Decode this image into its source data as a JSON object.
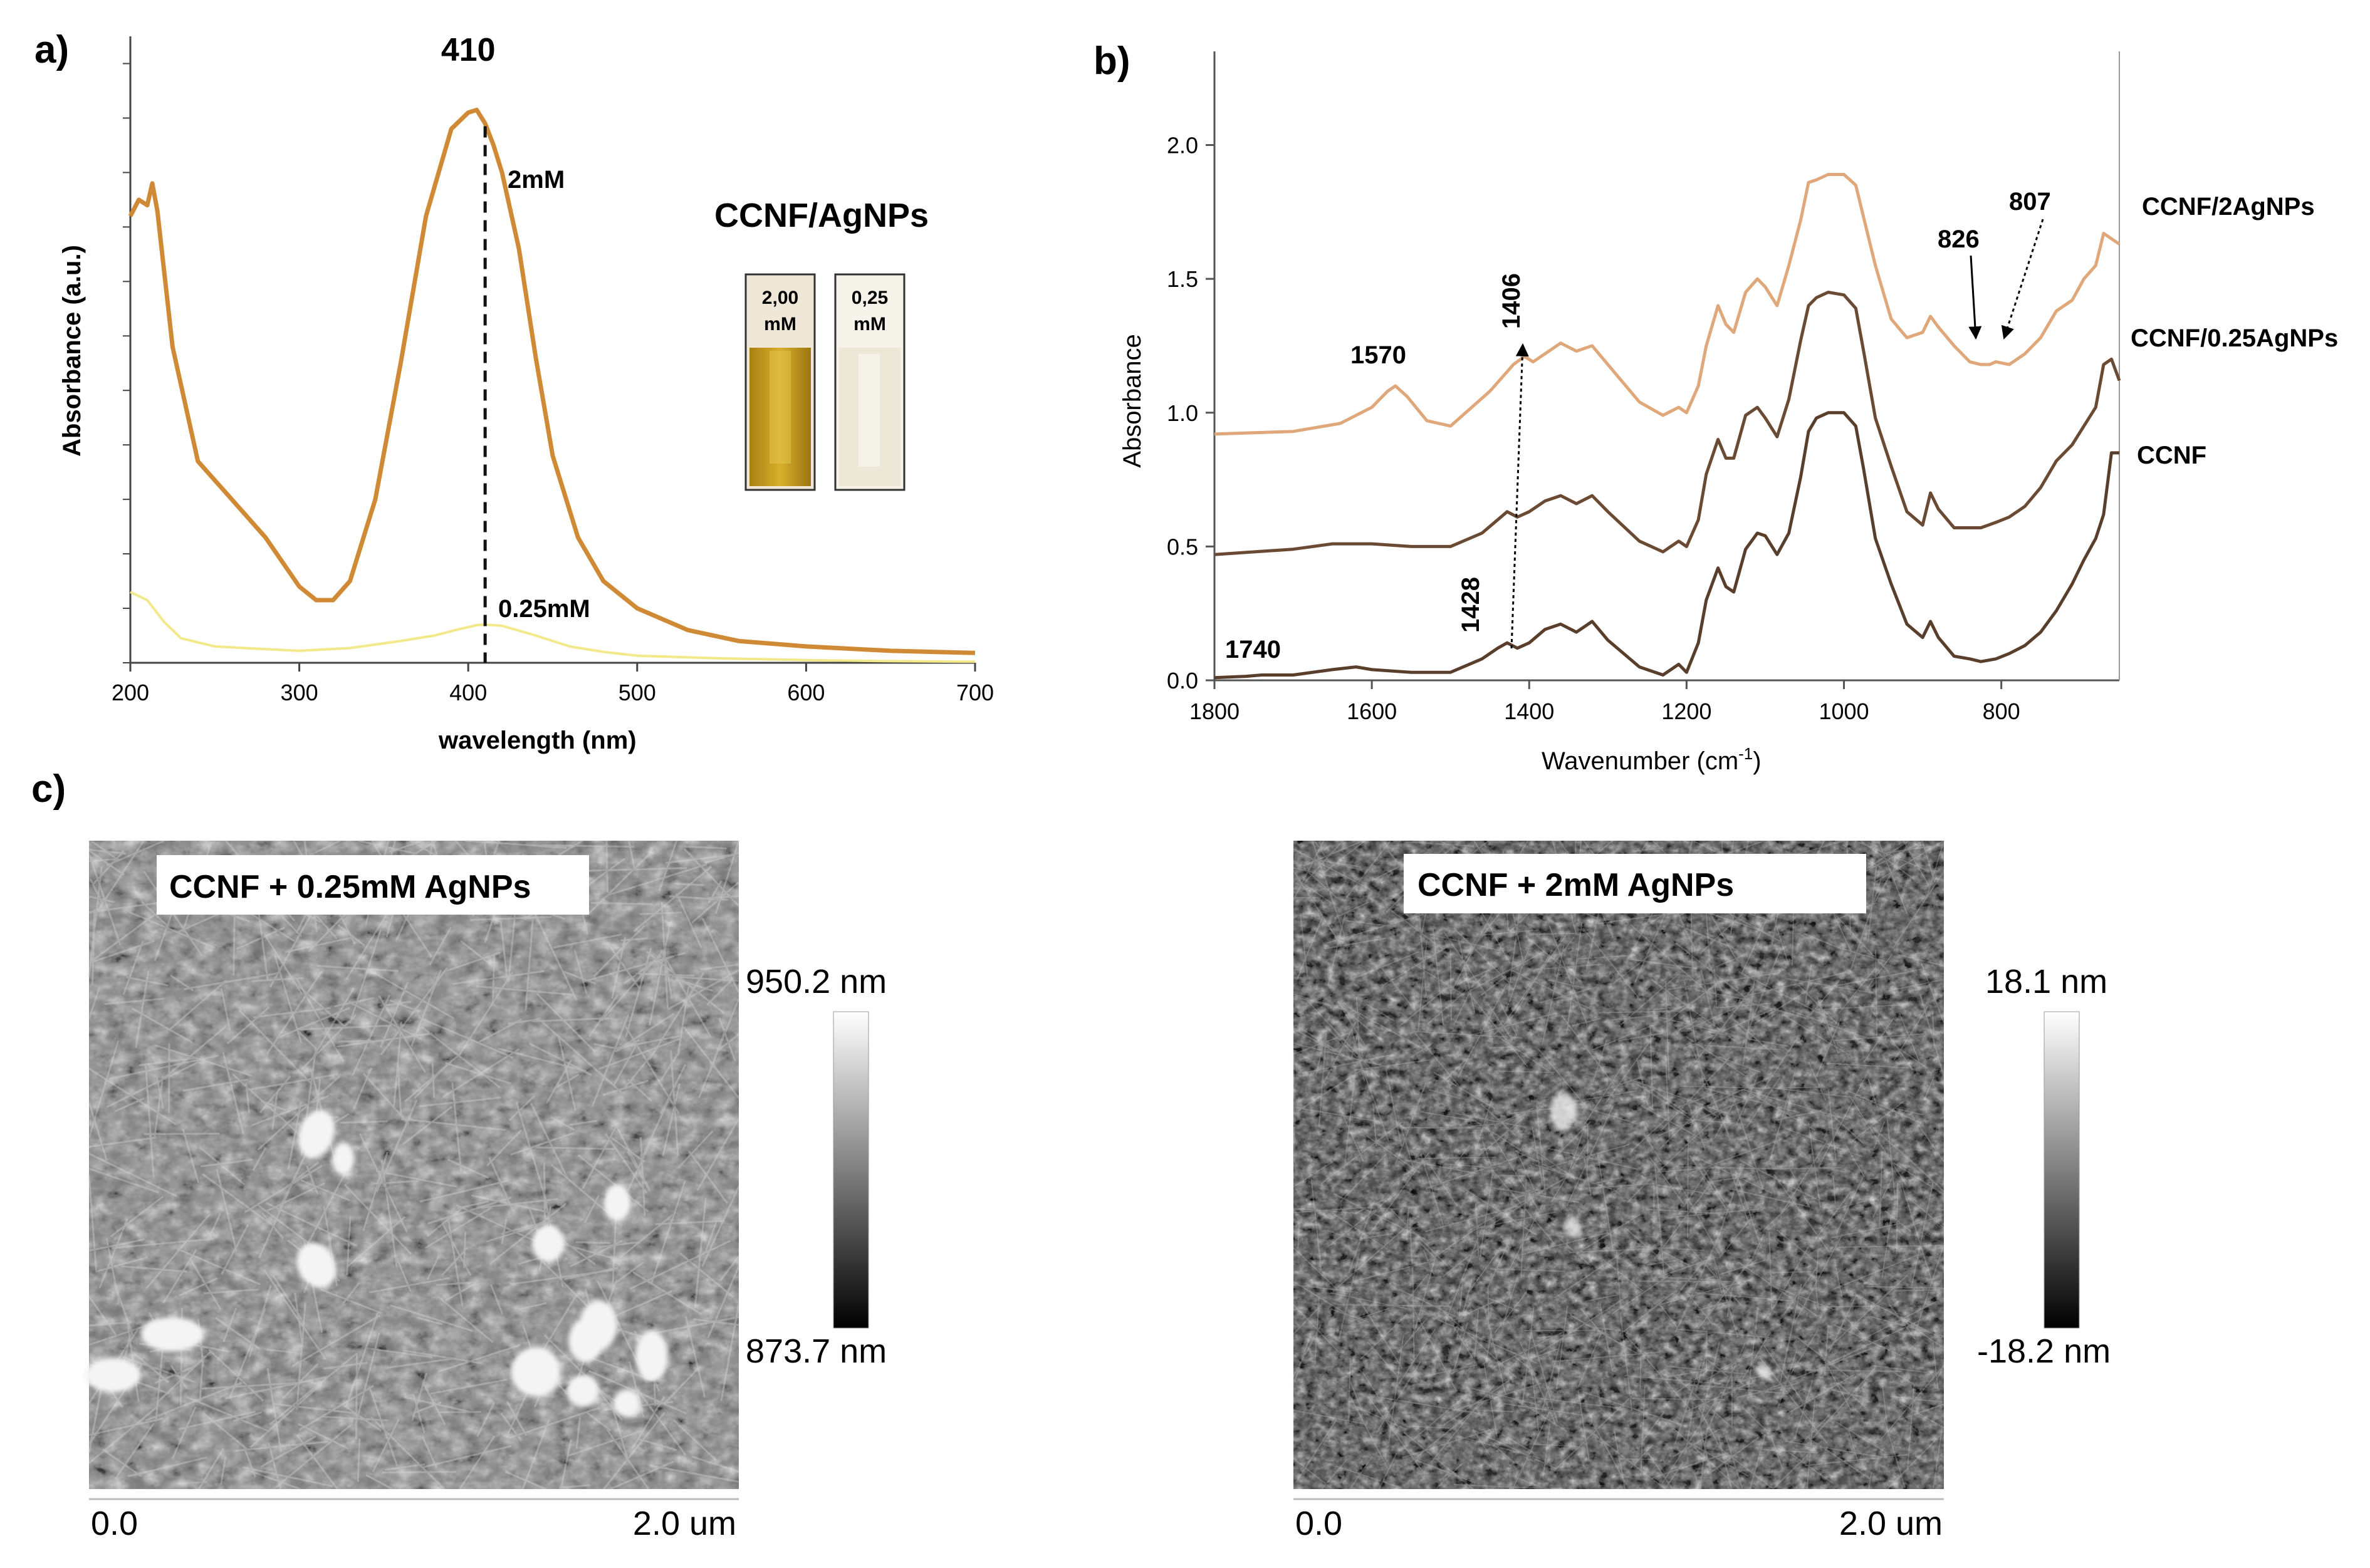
{
  "panels": {
    "a": "a)",
    "b": "b)",
    "c": "c)"
  },
  "colors": {
    "uv_2mM": "#d08a35",
    "uv_025mM": "#f2e98a",
    "ir_2AgNPs": "#e0a77a",
    "ir_025AgNPs": "#6b4a33",
    "ir_CCNF": "#5a3e2c",
    "vial_2mM": "#c9a01c",
    "vial_025mM": "#f1eee0"
  },
  "chart_data": [
    {
      "panel": "a",
      "type": "line",
      "xlabel": "wavelength (nm)",
      "ylabel": "Absorbance (a.u.)",
      "xlim": [
        200,
        700
      ],
      "ylim": [
        0,
        1.15
      ],
      "x_ticks": [
        200,
        300,
        400,
        500,
        600,
        700
      ],
      "series": [
        {
          "name": "2mM",
          "x": [
            200,
            205,
            210,
            213,
            216,
            225,
            240,
            260,
            280,
            300,
            310,
            320,
            330,
            345,
            360,
            375,
            390,
            400,
            405,
            410,
            415,
            420,
            430,
            440,
            450,
            465,
            480,
            500,
            530,
            560,
            600,
            650,
            700
          ],
          "y": [
            0.82,
            0.85,
            0.84,
            0.88,
            0.83,
            0.58,
            0.37,
            0.3,
            0.23,
            0.14,
            0.115,
            0.115,
            0.15,
            0.3,
            0.55,
            0.82,
            0.98,
            1.01,
            1.015,
            0.99,
            0.95,
            0.9,
            0.76,
            0.56,
            0.38,
            0.23,
            0.15,
            0.1,
            0.06,
            0.04,
            0.03,
            0.022,
            0.018
          ]
        },
        {
          "name": "0.25mM",
          "x": [
            200,
            210,
            220,
            230,
            250,
            280,
            300,
            330,
            360,
            380,
            395,
            405,
            410,
            420,
            440,
            460,
            480,
            500,
            550,
            600,
            650,
            700
          ],
          "y": [
            0.13,
            0.115,
            0.075,
            0.045,
            0.03,
            0.025,
            0.022,
            0.027,
            0.04,
            0.05,
            0.062,
            0.069,
            0.07,
            0.068,
            0.05,
            0.03,
            0.02,
            0.013,
            0.008,
            0.005,
            0.003,
            0.002
          ]
        }
      ],
      "annotations": {
        "peak": "410",
        "peak_x": 410,
        "label_2mM": "2mM",
        "label_025mM": "0.25mM",
        "legend_title": "CCNF/AgNPs",
        "vial_1": [
          "2,00",
          "mM"
        ],
        "vial_2": [
          "0,25",
          "mM"
        ]
      }
    },
    {
      "panel": "b",
      "type": "line",
      "xlabel": "Wavenumber (cm",
      "xlabel_sup": "-1",
      "xlabel_close": ")",
      "ylabel": "Absorbance",
      "xlim": [
        1800,
        650
      ],
      "ylim": [
        0,
        2.35
      ],
      "x_ticks": [
        1800,
        1600,
        1400,
        1200,
        1000,
        800
      ],
      "y_ticks": [
        "0.0",
        "0.5",
        "1.0",
        "1.5",
        "2.0"
      ],
      "series": [
        {
          "name": "CCNF/2AgNPs",
          "x": [
            1800,
            1700,
            1640,
            1600,
            1580,
            1570,
            1555,
            1530,
            1500,
            1450,
            1420,
            1406,
            1395,
            1380,
            1360,
            1340,
            1320,
            1300,
            1260,
            1230,
            1210,
            1200,
            1185,
            1175,
            1160,
            1150,
            1140,
            1125,
            1110,
            1100,
            1085,
            1070,
            1055,
            1045,
            1035,
            1020,
            1000,
            985,
            975,
            960,
            940,
            920,
            900,
            890,
            880,
            860,
            840,
            826,
            815,
            807,
            790,
            770,
            750,
            730,
            710,
            695,
            680,
            670,
            660,
            650
          ],
          "y": [
            0.92,
            0.93,
            0.96,
            1.02,
            1.08,
            1.1,
            1.06,
            0.97,
            0.95,
            1.08,
            1.18,
            1.21,
            1.19,
            1.22,
            1.26,
            1.23,
            1.25,
            1.18,
            1.04,
            0.99,
            1.02,
            1.0,
            1.1,
            1.25,
            1.4,
            1.33,
            1.3,
            1.45,
            1.5,
            1.47,
            1.4,
            1.55,
            1.72,
            1.86,
            1.87,
            1.89,
            1.89,
            1.85,
            1.73,
            1.55,
            1.35,
            1.28,
            1.3,
            1.36,
            1.32,
            1.25,
            1.19,
            1.18,
            1.18,
            1.19,
            1.18,
            1.22,
            1.28,
            1.38,
            1.42,
            1.5,
            1.55,
            1.67,
            1.65,
            1.63
          ]
        },
        {
          "name": "CCNF/0.25AgNPs",
          "x": [
            1800,
            1700,
            1650,
            1600,
            1550,
            1500,
            1460,
            1440,
            1428,
            1415,
            1400,
            1380,
            1360,
            1340,
            1320,
            1300,
            1260,
            1230,
            1210,
            1200,
            1185,
            1175,
            1160,
            1150,
            1140,
            1125,
            1110,
            1100,
            1085,
            1070,
            1055,
            1045,
            1035,
            1020,
            1000,
            985,
            975,
            960,
            940,
            920,
            900,
            890,
            880,
            860,
            840,
            826,
            807,
            790,
            770,
            750,
            730,
            710,
            695,
            680,
            670,
            660,
            650
          ],
          "y": [
            0.47,
            0.49,
            0.51,
            0.51,
            0.5,
            0.5,
            0.55,
            0.6,
            0.63,
            0.61,
            0.63,
            0.67,
            0.69,
            0.66,
            0.69,
            0.63,
            0.52,
            0.48,
            0.52,
            0.5,
            0.6,
            0.77,
            0.9,
            0.83,
            0.83,
            0.99,
            1.02,
            0.98,
            0.91,
            1.05,
            1.27,
            1.4,
            1.43,
            1.45,
            1.44,
            1.39,
            1.23,
            0.98,
            0.8,
            0.63,
            0.58,
            0.7,
            0.64,
            0.57,
            0.57,
            0.57,
            0.59,
            0.61,
            0.65,
            0.72,
            0.82,
            0.88,
            0.95,
            1.02,
            1.18,
            1.2,
            1.12
          ]
        },
        {
          "name": "CCNF",
          "x": [
            1800,
            1760,
            1740,
            1700,
            1650,
            1620,
            1600,
            1550,
            1500,
            1460,
            1440,
            1428,
            1415,
            1400,
            1380,
            1360,
            1340,
            1320,
            1300,
            1260,
            1230,
            1210,
            1200,
            1185,
            1175,
            1160,
            1150,
            1140,
            1125,
            1110,
            1100,
            1085,
            1070,
            1055,
            1045,
            1035,
            1020,
            1000,
            985,
            975,
            960,
            940,
            920,
            900,
            890,
            880,
            860,
            840,
            826,
            807,
            790,
            770,
            750,
            730,
            710,
            695,
            680,
            670,
            660,
            650
          ],
          "y": [
            0.01,
            0.015,
            0.02,
            0.02,
            0.04,
            0.05,
            0.04,
            0.03,
            0.03,
            0.08,
            0.12,
            0.14,
            0.12,
            0.14,
            0.19,
            0.21,
            0.18,
            0.22,
            0.15,
            0.05,
            0.02,
            0.06,
            0.03,
            0.14,
            0.3,
            0.42,
            0.35,
            0.33,
            0.49,
            0.55,
            0.54,
            0.47,
            0.55,
            0.76,
            0.93,
            0.98,
            1.0,
            1.0,
            0.95,
            0.79,
            0.53,
            0.36,
            0.21,
            0.16,
            0.22,
            0.16,
            0.09,
            0.08,
            0.07,
            0.08,
            0.1,
            0.13,
            0.18,
            0.26,
            0.36,
            0.45,
            0.53,
            0.62,
            0.85,
            0.85
          ]
        }
      ],
      "annotations": {
        "label_1570": "1570",
        "label_1406": "1406",
        "label_1428": "1428",
        "label_1740": "1740",
        "label_826": "826",
        "label_807": "807",
        "legend_2": "CCNF/2AgNPs",
        "legend_025": "CCNF/0.25AgNPs",
        "legend_ccnf": "CCNF"
      }
    }
  ],
  "afm": {
    "left": {
      "title": "CCNF + 0.25mM AgNPs",
      "scale_max": "950.2 nm",
      "scale_min": "873.7 nm",
      "axis_start": "0.0",
      "axis_end": "2.0 um"
    },
    "right": {
      "title": "CCNF + 2mM AgNPs",
      "scale_max": "18.1 nm",
      "scale_min": "-18.2 nm",
      "axis_start": "0.0",
      "axis_end": "2.0 um"
    }
  }
}
